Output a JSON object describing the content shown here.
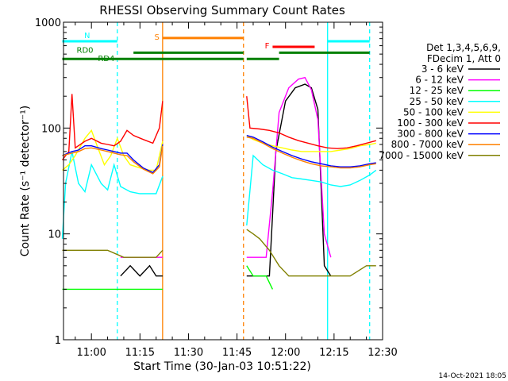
{
  "chart_data": {
    "type": "line",
    "title": "RHESSI Observing Summary Count Rates",
    "xlabel": "Start Time (30-Jan-03 10:51:22)",
    "ylabel": "Count Rate (s⁻¹ detector⁻¹)",
    "x_range": [
      "10:51:22",
      "12:30:00"
    ],
    "x_ticks": [
      "11:00",
      "11:15",
      "11:30",
      "11:45",
      "12:00",
      "12:15",
      "12:30"
    ],
    "y_scale": "log",
    "ylim": [
      1,
      1000
    ],
    "y_ticks": [
      "1",
      "10",
      "100",
      "1000"
    ],
    "legend_title": [
      "Det 1,3,4,5,6,9,",
      "FDecim 1, Att 0"
    ],
    "legend_position": "right",
    "date_stamp": "14-Oct-2021 18:05",
    "vertical_lines": [
      {
        "time": "11:08",
        "color": "#00ffff",
        "style": "dashed"
      },
      {
        "time": "11:22",
        "color": "#ff8000",
        "style": "solid"
      },
      {
        "time": "11:47",
        "color": "#ff8000",
        "style": "dashed"
      },
      {
        "time": "12:13",
        "color": "#00ffff",
        "style": "solid"
      },
      {
        "time": "12:26",
        "color": "#00ffff",
        "style": "dashed"
      }
    ],
    "flag_bars": [
      {
        "label": "N",
        "color": "#00ffff",
        "segments": [
          [
            "10:51",
            "11:08"
          ],
          [
            "12:13",
            "12:26"
          ]
        ],
        "level": 660
      },
      {
        "label": "S",
        "color": "#ff8000",
        "segments": [
          [
            "11:22",
            "11:47"
          ]
        ],
        "level": 710
      },
      {
        "label": "F",
        "color": "#ff0000",
        "segments": [
          [
            "11:56",
            "12:09"
          ]
        ],
        "level": 585
      },
      {
        "label": "RD0",
        "color": "#008000",
        "segments": [
          [
            "11:13",
            "11:47"
          ],
          [
            "11:58",
            "12:26"
          ]
        ],
        "level": 515
      },
      {
        "label": "RD4",
        "color": "#008000",
        "segments": [
          [
            "10:51",
            "11:47"
          ],
          [
            "11:48",
            "11:58"
          ]
        ],
        "level": 450
      }
    ],
    "series": [
      {
        "name": "3 - 6 keV",
        "color": "#000000",
        "points": [
          [
            "11:09",
            4
          ],
          [
            "11:12",
            5
          ],
          [
            "11:15",
            4
          ],
          [
            "11:18",
            5
          ],
          [
            "11:20",
            4
          ],
          [
            "11:22",
            4
          ],
          [
            "11:48",
            4
          ],
          [
            "11:50",
            4
          ],
          [
            "11:52",
            4
          ],
          [
            "11:55",
            4
          ],
          [
            "11:57",
            60
          ],
          [
            "12:00",
            180
          ],
          [
            "12:03",
            240
          ],
          [
            "12:06",
            260
          ],
          [
            "12:08",
            240
          ],
          [
            "12:10",
            150
          ],
          [
            "12:12",
            5
          ],
          [
            "12:14",
            4
          ]
        ]
      },
      {
        "name": "6 - 12 keV",
        "color": "#ff00ff",
        "points": [
          [
            "11:09",
            6
          ],
          [
            "11:12",
            6
          ],
          [
            "11:15",
            6
          ],
          [
            "11:18",
            6
          ],
          [
            "11:20",
            6
          ],
          [
            "11:22",
            6
          ],
          [
            "11:48",
            6
          ],
          [
            "11:51",
            6
          ],
          [
            "11:54",
            6
          ],
          [
            "11:56",
            25
          ],
          [
            "11:58",
            140
          ],
          [
            "12:01",
            240
          ],
          [
            "12:04",
            290
          ],
          [
            "12:06",
            300
          ],
          [
            "12:08",
            230
          ],
          [
            "12:10",
            120
          ],
          [
            "12:12",
            10
          ],
          [
            "12:14",
            6
          ]
        ]
      },
      {
        "name": "12 - 25 keV",
        "color": "#00ff00",
        "points": [
          [
            "10:51",
            3
          ],
          [
            "10:55",
            3
          ],
          [
            "11:00",
            3
          ],
          [
            "11:05",
            3
          ],
          [
            "11:10",
            3
          ],
          [
            "11:15",
            3
          ],
          [
            "11:20",
            3
          ],
          [
            "11:22",
            3
          ],
          [
            "11:48",
            5
          ],
          [
            "11:50",
            4
          ],
          [
            "11:54",
            4
          ],
          [
            "11:56",
            3
          ]
        ]
      },
      {
        "name": "25 - 50 keV",
        "color": "#00ffff",
        "points": [
          [
            "10:51",
            9
          ],
          [
            "10:52",
            30
          ],
          [
            "10:54",
            60
          ],
          [
            "10:56",
            30
          ],
          [
            "10:58",
            25
          ],
          [
            "11:00",
            45
          ],
          [
            "11:03",
            30
          ],
          [
            "11:05",
            26
          ],
          [
            "11:07",
            45
          ],
          [
            "11:09",
            28
          ],
          [
            "11:12",
            25
          ],
          [
            "11:15",
            24
          ],
          [
            "11:18",
            24
          ],
          [
            "11:20",
            24
          ],
          [
            "11:22",
            35
          ],
          [
            "11:48",
            12
          ],
          [
            "11:50",
            55
          ],
          [
            "11:53",
            45
          ],
          [
            "11:56",
            40
          ],
          [
            "11:59",
            37
          ],
          [
            "12:02",
            34
          ],
          [
            "12:05",
            33
          ],
          [
            "12:08",
            32
          ],
          [
            "12:11",
            31
          ],
          [
            "12:14",
            29
          ],
          [
            "12:17",
            28
          ],
          [
            "12:20",
            29
          ],
          [
            "12:23",
            32
          ],
          [
            "12:26",
            36
          ],
          [
            "12:28",
            40
          ]
        ]
      },
      {
        "name": "50 - 100 keV",
        "color": "#ffff00",
        "points": [
          [
            "10:51",
            40
          ],
          [
            "10:53",
            45
          ],
          [
            "10:55",
            55
          ],
          [
            "10:58",
            80
          ],
          [
            "11:00",
            95
          ],
          [
            "11:02",
            65
          ],
          [
            "11:04",
            45
          ],
          [
            "11:06",
            55
          ],
          [
            "11:08",
            80
          ],
          [
            "11:10",
            55
          ],
          [
            "11:12",
            45
          ],
          [
            "11:15",
            42
          ],
          [
            "11:18",
            40
          ],
          [
            "11:20",
            40
          ],
          [
            "11:22",
            75
          ],
          [
            "11:48",
            85
          ],
          [
            "11:50",
            78
          ],
          [
            "11:53",
            72
          ],
          [
            "11:56",
            68
          ],
          [
            "11:59",
            65
          ],
          [
            "12:02",
            62
          ],
          [
            "12:05",
            60
          ],
          [
            "12:08",
            60
          ],
          [
            "12:11",
            60
          ],
          [
            "12:14",
            60
          ],
          [
            "12:17",
            62
          ],
          [
            "12:20",
            64
          ],
          [
            "12:23",
            68
          ],
          [
            "12:26",
            70
          ],
          [
            "12:28",
            72
          ]
        ]
      },
      {
        "name": "100 - 300 keV",
        "color": "#ff0000",
        "points": [
          [
            "10:51",
            50
          ],
          [
            "10:53",
            60
          ],
          [
            "10:54",
            210
          ],
          [
            "10:55",
            65
          ],
          [
            "10:58",
            75
          ],
          [
            "11:00",
            80
          ],
          [
            "11:03",
            72
          ],
          [
            "11:05",
            70
          ],
          [
            "11:07",
            68
          ],
          [
            "11:09",
            75
          ],
          [
            "11:11",
            95
          ],
          [
            "11:13",
            85
          ],
          [
            "11:16",
            78
          ],
          [
            "11:19",
            72
          ],
          [
            "11:21",
            100
          ],
          [
            "11:22",
            180
          ],
          [
            "11:48",
            200
          ],
          [
            "11:49",
            100
          ],
          [
            "11:52",
            98
          ],
          [
            "11:55",
            95
          ],
          [
            "11:58",
            90
          ],
          [
            "12:01",
            82
          ],
          [
            "12:04",
            76
          ],
          [
            "12:07",
            72
          ],
          [
            "12:10",
            68
          ],
          [
            "12:13",
            65
          ],
          [
            "12:16",
            64
          ],
          [
            "12:19",
            65
          ],
          [
            "12:22",
            68
          ],
          [
            "12:25",
            72
          ],
          [
            "12:28",
            76
          ]
        ]
      },
      {
        "name": "300 - 800 keV",
        "color": "#0000ff",
        "points": [
          [
            "10:51",
            55
          ],
          [
            "10:54",
            60
          ],
          [
            "10:56",
            62
          ],
          [
            "10:58",
            68
          ],
          [
            "11:00",
            68
          ],
          [
            "11:03",
            64
          ],
          [
            "11:05",
            62
          ],
          [
            "11:07",
            60
          ],
          [
            "11:09",
            58
          ],
          [
            "11:11",
            58
          ],
          [
            "11:13",
            50
          ],
          [
            "11:16",
            42
          ],
          [
            "11:19",
            38
          ],
          [
            "11:21",
            45
          ],
          [
            "11:22",
            70
          ],
          [
            "11:48",
            85
          ],
          [
            "11:50",
            82
          ],
          [
            "11:53",
            74
          ],
          [
            "11:56",
            66
          ],
          [
            "11:59",
            60
          ],
          [
            "12:02",
            55
          ],
          [
            "12:05",
            51
          ],
          [
            "12:08",
            48
          ],
          [
            "12:11",
            46
          ],
          [
            "12:14",
            44
          ],
          [
            "12:17",
            43
          ],
          [
            "12:20",
            43
          ],
          [
            "12:23",
            44
          ],
          [
            "12:26",
            46
          ],
          [
            "12:28",
            47
          ]
        ]
      },
      {
        "name": "800 - 7000 keV",
        "color": "#ff8000",
        "points": [
          [
            "10:51",
            55
          ],
          [
            "10:54",
            58
          ],
          [
            "10:56",
            60
          ],
          [
            "10:58",
            64
          ],
          [
            "11:00",
            65
          ],
          [
            "11:03",
            62
          ],
          [
            "11:05",
            60
          ],
          [
            "11:07",
            58
          ],
          [
            "11:09",
            56
          ],
          [
            "11:11",
            55
          ],
          [
            "11:13",
            48
          ],
          [
            "11:16",
            41
          ],
          [
            "11:19",
            37
          ],
          [
            "11:21",
            43
          ],
          [
            "11:22",
            68
          ],
          [
            "11:48",
            82
          ],
          [
            "11:50",
            80
          ],
          [
            "11:53",
            72
          ],
          [
            "11:56",
            64
          ],
          [
            "11:59",
            58
          ],
          [
            "12:02",
            53
          ],
          [
            "12:05",
            49
          ],
          [
            "12:08",
            46
          ],
          [
            "12:11",
            44
          ],
          [
            "12:14",
            43
          ],
          [
            "12:17",
            42
          ],
          [
            "12:20",
            42
          ],
          [
            "12:23",
            43
          ],
          [
            "12:26",
            45
          ],
          [
            "12:28",
            46
          ]
        ]
      },
      {
        "name": "7000 - 15000 keV",
        "color": "#808000",
        "points": [
          [
            "10:51",
            7
          ],
          [
            "10:55",
            7
          ],
          [
            "11:00",
            7
          ],
          [
            "11:05",
            7
          ],
          [
            "11:10",
            6
          ],
          [
            "11:15",
            6
          ],
          [
            "11:20",
            6
          ],
          [
            "11:22",
            7
          ],
          [
            "11:48",
            11
          ],
          [
            "11:50",
            10
          ],
          [
            "11:52",
            9
          ],
          [
            "11:55",
            7
          ],
          [
            "11:58",
            5
          ],
          [
            "12:01",
            4
          ],
          [
            "12:05",
            4
          ],
          [
            "12:10",
            4
          ],
          [
            "12:15",
            4
          ],
          [
            "12:20",
            4
          ],
          [
            "12:25",
            5
          ],
          [
            "12:28",
            5
          ]
        ]
      }
    ]
  }
}
